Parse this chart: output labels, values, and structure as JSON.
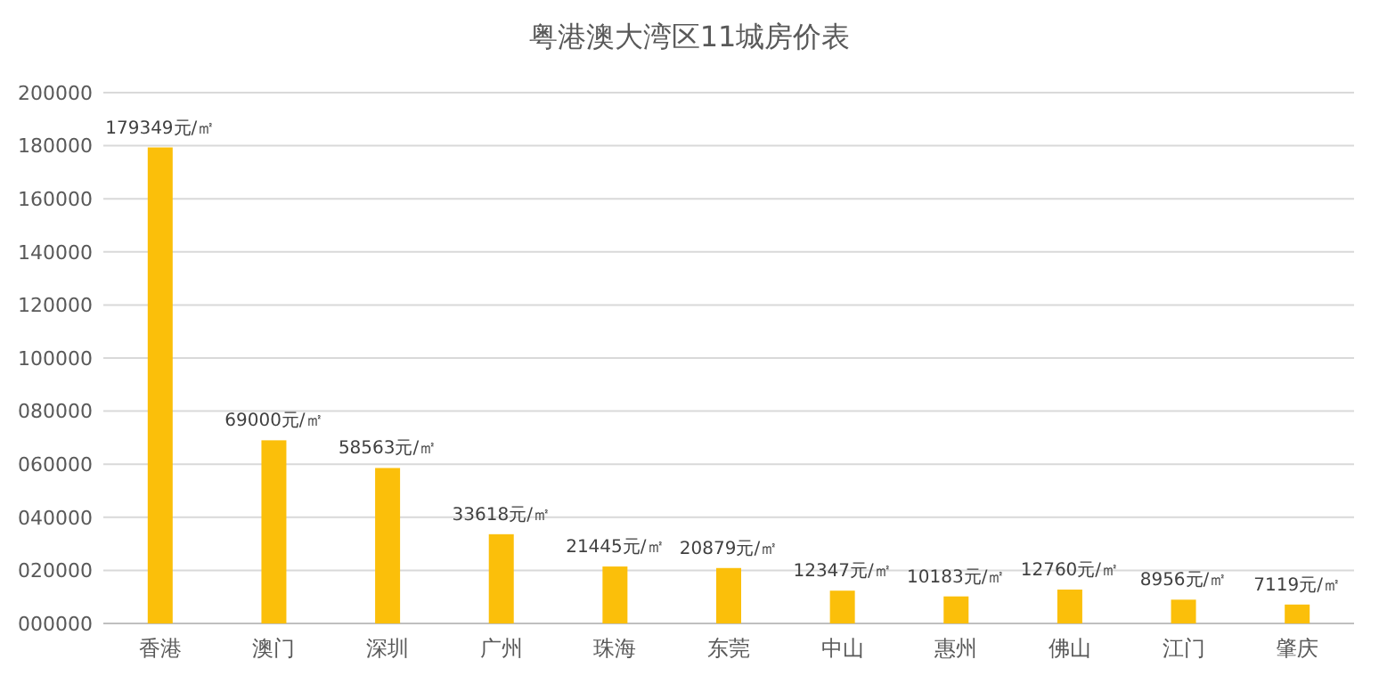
{
  "chart_data": {
    "type": "bar",
    "title": "粤港澳大湾区11城房价表",
    "categories": [
      "香港",
      "澳门",
      "深圳",
      "广州",
      "珠海",
      "东莞",
      "中山",
      "惠州",
      "佛山",
      "江门",
      "肇庆"
    ],
    "values": [
      179349,
      69000,
      58563,
      33618,
      21445,
      20879,
      12347,
      10183,
      12760,
      8956,
      7119
    ],
    "value_labels": [
      "179349元/㎡",
      "69000元/㎡",
      "58563元/㎡",
      "33618元/㎡",
      "21445元/㎡",
      "20879元/㎡",
      "12347元/㎡",
      "10183元/㎡",
      "12760元/㎡",
      "8956元/㎡",
      "7119元/㎡"
    ],
    "color": "#fbbf0a",
    "ylim": [
      0,
      200000
    ],
    "yticks": [
      {
        "value": 0,
        "label": "000000"
      },
      {
        "value": 20000,
        "label": "020000"
      },
      {
        "value": 40000,
        "label": "040000"
      },
      {
        "value": 60000,
        "label": "060000"
      },
      {
        "value": 80000,
        "label": "080000"
      },
      100000,
      120000,
      140000,
      160000,
      180000,
      200000
    ],
    "grid": "y"
  }
}
